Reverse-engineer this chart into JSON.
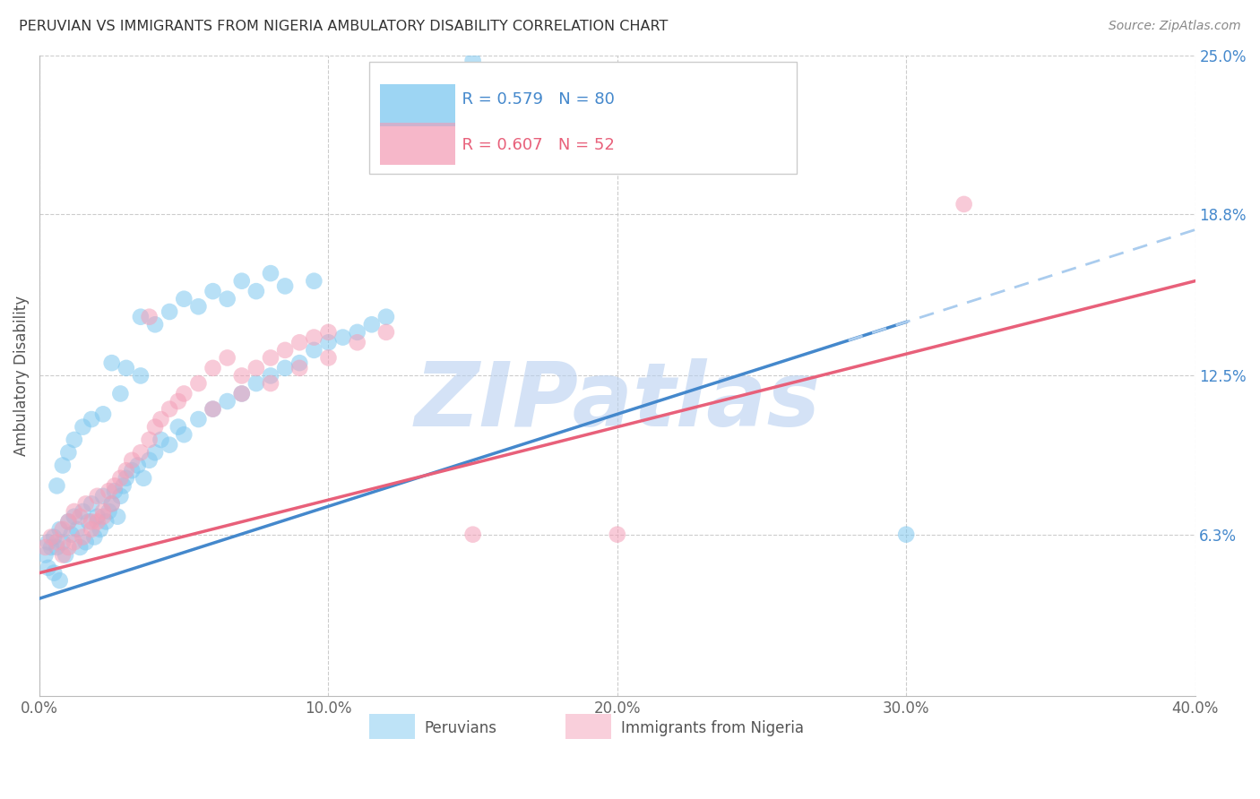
{
  "title": "PERUVIAN VS IMMIGRANTS FROM NIGERIA AMBULATORY DISABILITY CORRELATION CHART",
  "source": "Source: ZipAtlas.com",
  "ylabel": "Ambulatory Disability",
  "xlim": [
    0.0,
    0.4
  ],
  "ylim": [
    0.0,
    0.25
  ],
  "yticks": [
    0.063,
    0.125,
    0.188,
    0.25
  ],
  "ytick_labels": [
    "6.3%",
    "12.5%",
    "18.8%",
    "25.0%"
  ],
  "xticks": [
    0.0,
    0.1,
    0.2,
    0.3,
    0.4
  ],
  "xtick_labels": [
    "0.0%",
    "10.0%",
    "20.0%",
    "30.0%",
    "40.0%"
  ],
  "legend_r1": "R = 0.579",
  "legend_n1": "N = 80",
  "legend_r2": "R = 0.607",
  "legend_n2": "N = 52",
  "color_blue": "#7EC8F0",
  "color_pink": "#F4A0B8",
  "color_blue_line": "#4488CC",
  "color_pink_line": "#E8607A",
  "color_blue_dash": "#AACCEE",
  "color_text_blue": "#4488CC",
  "color_text_pink": "#E8607A",
  "background_color": "#FFFFFF",
  "grid_color": "#CCCCCC",
  "watermark_color": "#B8D0F0",
  "blue_line_start_y": 0.038,
  "blue_line_end_y": 0.182,
  "pink_line_start_y": 0.048,
  "pink_line_end_y": 0.162,
  "peruvian_x": [
    0.002,
    0.003,
    0.004,
    0.005,
    0.006,
    0.007,
    0.008,
    0.009,
    0.01,
    0.011,
    0.012,
    0.013,
    0.014,
    0.015,
    0.016,
    0.017,
    0.018,
    0.019,
    0.02,
    0.021,
    0.022,
    0.023,
    0.024,
    0.025,
    0.026,
    0.027,
    0.028,
    0.029,
    0.03,
    0.032,
    0.034,
    0.036,
    0.038,
    0.04,
    0.042,
    0.045,
    0.048,
    0.05,
    0.055,
    0.06,
    0.065,
    0.07,
    0.075,
    0.08,
    0.085,
    0.09,
    0.095,
    0.1,
    0.105,
    0.11,
    0.115,
    0.12,
    0.05,
    0.06,
    0.07,
    0.08,
    0.035,
    0.04,
    0.045,
    0.055,
    0.065,
    0.075,
    0.085,
    0.095,
    0.025,
    0.03,
    0.035,
    0.028,
    0.022,
    0.018,
    0.015,
    0.012,
    0.01,
    0.008,
    0.006,
    0.15,
    0.3,
    0.003,
    0.005,
    0.007
  ],
  "peruvian_y": [
    0.055,
    0.06,
    0.058,
    0.062,
    0.058,
    0.065,
    0.06,
    0.055,
    0.068,
    0.063,
    0.07,
    0.065,
    0.058,
    0.072,
    0.06,
    0.068,
    0.075,
    0.062,
    0.07,
    0.065,
    0.078,
    0.068,
    0.072,
    0.075,
    0.08,
    0.07,
    0.078,
    0.082,
    0.085,
    0.088,
    0.09,
    0.085,
    0.092,
    0.095,
    0.1,
    0.098,
    0.105,
    0.102,
    0.108,
    0.112,
    0.115,
    0.118,
    0.122,
    0.125,
    0.128,
    0.13,
    0.135,
    0.138,
    0.14,
    0.142,
    0.145,
    0.148,
    0.155,
    0.158,
    0.162,
    0.165,
    0.148,
    0.145,
    0.15,
    0.152,
    0.155,
    0.158,
    0.16,
    0.162,
    0.13,
    0.128,
    0.125,
    0.118,
    0.11,
    0.108,
    0.105,
    0.1,
    0.095,
    0.09,
    0.082,
    0.248,
    0.063,
    0.05,
    0.048,
    0.045
  ],
  "nigeria_x": [
    0.002,
    0.004,
    0.006,
    0.008,
    0.01,
    0.012,
    0.014,
    0.016,
    0.018,
    0.02,
    0.022,
    0.024,
    0.026,
    0.028,
    0.03,
    0.032,
    0.035,
    0.038,
    0.04,
    0.042,
    0.045,
    0.048,
    0.05,
    0.055,
    0.06,
    0.065,
    0.07,
    0.075,
    0.08,
    0.085,
    0.09,
    0.095,
    0.1,
    0.06,
    0.07,
    0.08,
    0.09,
    0.1,
    0.11,
    0.12,
    0.008,
    0.01,
    0.012,
    0.015,
    0.018,
    0.02,
    0.022,
    0.025,
    0.15,
    0.2,
    0.32,
    0.038
  ],
  "nigeria_y": [
    0.058,
    0.062,
    0.06,
    0.065,
    0.068,
    0.072,
    0.07,
    0.075,
    0.068,
    0.078,
    0.072,
    0.08,
    0.082,
    0.085,
    0.088,
    0.092,
    0.095,
    0.1,
    0.105,
    0.108,
    0.112,
    0.115,
    0.118,
    0.122,
    0.128,
    0.132,
    0.125,
    0.128,
    0.132,
    0.135,
    0.138,
    0.14,
    0.142,
    0.112,
    0.118,
    0.122,
    0.128,
    0.132,
    0.138,
    0.142,
    0.055,
    0.058,
    0.06,
    0.062,
    0.065,
    0.068,
    0.07,
    0.075,
    0.063,
    0.063,
    0.192,
    0.148
  ]
}
